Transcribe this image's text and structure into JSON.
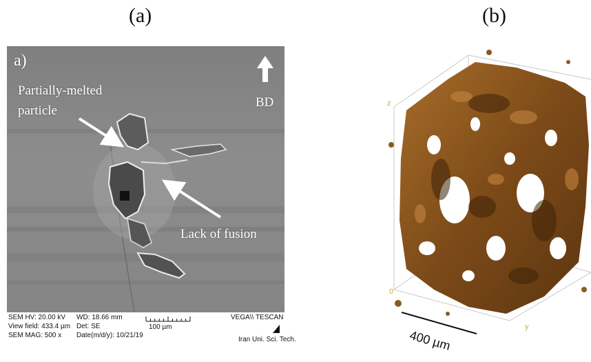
{
  "panels": {
    "a_label": "(a)",
    "b_label": "(b)"
  },
  "sem": {
    "sub_label": "a)",
    "partially_melted_line1": "Partially-melted",
    "partially_melted_line2": "particle",
    "lack_of_fusion": "Lack of fusion",
    "build_direction": "BD",
    "footer": {
      "hv": "SEM HV: 20.00 kV",
      "view_field": "View field: 433.4 µm",
      "mag": "SEM MAG: 500 x",
      "wd": "WD: 18.66 mm",
      "det": "Det: SE",
      "date": "Date(m/d/y): 10/21/19",
      "scale": "100 µm",
      "brand": "VEGA\\\\ TESCAN",
      "institution": "Iran Uni. Sci. Tech."
    },
    "colors": {
      "background": "#8a8a8a",
      "arrow": "#ffffff"
    }
  },
  "tomography": {
    "axis_z": "z",
    "axis_zero": "0",
    "axis_y": "y",
    "scale_bar": "400 µm",
    "colors": {
      "pore": "#8b5a1e",
      "axis": "#d4a93a"
    }
  }
}
